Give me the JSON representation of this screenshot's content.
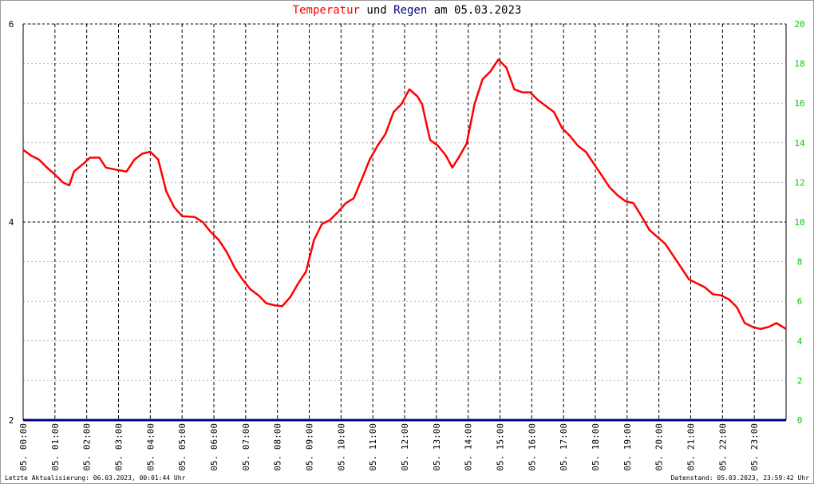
{
  "chart_data": {
    "type": "line",
    "title_parts": [
      {
        "text": "Temperatur",
        "color": "#ff0000"
      },
      {
        "text": "und",
        "color": "#000000"
      },
      {
        "text": "Regen",
        "color": "#000080"
      },
      {
        "text": "am 05.03.2023",
        "color": "#000000"
      }
    ],
    "xlim": [
      0,
      24
    ],
    "xticks": [
      {
        "value": 0,
        "label": "05. 00:00"
      },
      {
        "value": 1,
        "label": "05. 01:00"
      },
      {
        "value": 2,
        "label": "05. 02:00"
      },
      {
        "value": 3,
        "label": "05. 03:00"
      },
      {
        "value": 4,
        "label": "05. 04:00"
      },
      {
        "value": 5,
        "label": "05. 05:00"
      },
      {
        "value": 6,
        "label": "05. 06:00"
      },
      {
        "value": 7,
        "label": "05. 07:00"
      },
      {
        "value": 8,
        "label": "05. 08:00"
      },
      {
        "value": 9,
        "label": "05. 09:00"
      },
      {
        "value": 10,
        "label": "05. 10:00"
      },
      {
        "value": 11,
        "label": "05. 11:00"
      },
      {
        "value": 12,
        "label": "05. 12:00"
      },
      {
        "value": 13,
        "label": "05. 13:00"
      },
      {
        "value": 14,
        "label": "05. 14:00"
      },
      {
        "value": 15,
        "label": "05. 15:00"
      },
      {
        "value": 16,
        "label": "05. 16:00"
      },
      {
        "value": 17,
        "label": "05. 17:00"
      },
      {
        "value": 18,
        "label": "05. 18:00"
      },
      {
        "value": 19,
        "label": "05. 19:00"
      },
      {
        "value": 20,
        "label": "05. 20:00"
      },
      {
        "value": 21,
        "label": "05. 21:00"
      },
      {
        "value": 22,
        "label": "05. 22:00"
      },
      {
        "value": 23,
        "label": "05. 23:00"
      }
    ],
    "ylim": [
      2,
      6
    ],
    "yticks": [
      2,
      4,
      6
    ],
    "y2lim": [
      0,
      20
    ],
    "y2ticks": [
      0,
      2,
      4,
      6,
      8,
      10,
      12,
      14,
      16,
      18,
      20
    ],
    "y2_tick_color": "#00cc00",
    "series": [
      {
        "name": "Temperatur",
        "color": "#ff0000",
        "x": [
          0,
          0.25,
          0.5,
          0.75,
          1.0,
          1.25,
          1.45,
          1.6,
          1.9,
          2.1,
          2.4,
          2.6,
          2.9,
          3.25,
          3.5,
          3.75,
          4.0,
          4.25,
          4.5,
          4.75,
          5.0,
          5.4,
          5.65,
          5.9,
          6.15,
          6.4,
          6.65,
          6.9,
          7.15,
          7.4,
          7.65,
          7.9,
          8.15,
          8.4,
          8.65,
          8.9,
          9.15,
          9.4,
          9.65,
          9.9,
          10.15,
          10.4,
          10.65,
          10.9,
          11.15,
          11.4,
          11.65,
          11.9,
          12.15,
          12.4,
          12.55,
          12.8,
          13.05,
          13.3,
          13.5,
          13.7,
          13.95,
          14.2,
          14.45,
          14.7,
          14.95,
          15.2,
          15.45,
          15.7,
          15.95,
          16.2,
          16.45,
          16.7,
          16.95,
          17.2,
          17.45,
          17.7,
          17.95,
          18.2,
          18.45,
          18.7,
          18.95,
          19.2,
          19.45,
          19.7,
          19.95,
          20.2,
          20.45,
          20.7,
          20.95,
          21.2,
          21.45,
          21.7,
          21.95,
          22.2,
          22.45,
          22.7,
          22.95,
          23.2,
          23.45,
          23.7,
          24.0
        ],
        "values": [
          4.73,
          4.67,
          4.63,
          4.55,
          4.48,
          4.4,
          4.37,
          4.51,
          4.59,
          4.65,
          4.65,
          4.55,
          4.53,
          4.51,
          4.63,
          4.69,
          4.71,
          4.63,
          4.31,
          4.15,
          4.06,
          4.05,
          4.0,
          3.9,
          3.82,
          3.7,
          3.54,
          3.42,
          3.32,
          3.26,
          3.18,
          3.16,
          3.15,
          3.24,
          3.38,
          3.5,
          3.82,
          3.98,
          4.02,
          4.1,
          4.19,
          4.24,
          4.43,
          4.63,
          4.77,
          4.89,
          5.11,
          5.19,
          5.34,
          5.27,
          5.19,
          4.83,
          4.77,
          4.67,
          4.55,
          4.65,
          4.79,
          5.19,
          5.44,
          5.52,
          5.64,
          5.56,
          5.34,
          5.31,
          5.31,
          5.23,
          5.17,
          5.11,
          4.95,
          4.87,
          4.77,
          4.71,
          4.59,
          4.47,
          4.35,
          4.27,
          4.21,
          4.19,
          4.06,
          3.92,
          3.85,
          3.78,
          3.66,
          3.54,
          3.42,
          3.38,
          3.34,
          3.27,
          3.26,
          3.22,
          3.14,
          2.98,
          2.94,
          2.92,
          2.94,
          2.98,
          2.92
        ]
      },
      {
        "name": "Regen",
        "color": "#000080",
        "axis": "y2",
        "x": [
          0,
          24
        ],
        "values": [
          0,
          0
        ]
      }
    ],
    "footer_left": "Letzte Aktualisierung: 06.03.2023, 00:01:44 Uhr",
    "footer_right": "Datenstand: 05.03.2023, 23:59:42 Uhr"
  }
}
